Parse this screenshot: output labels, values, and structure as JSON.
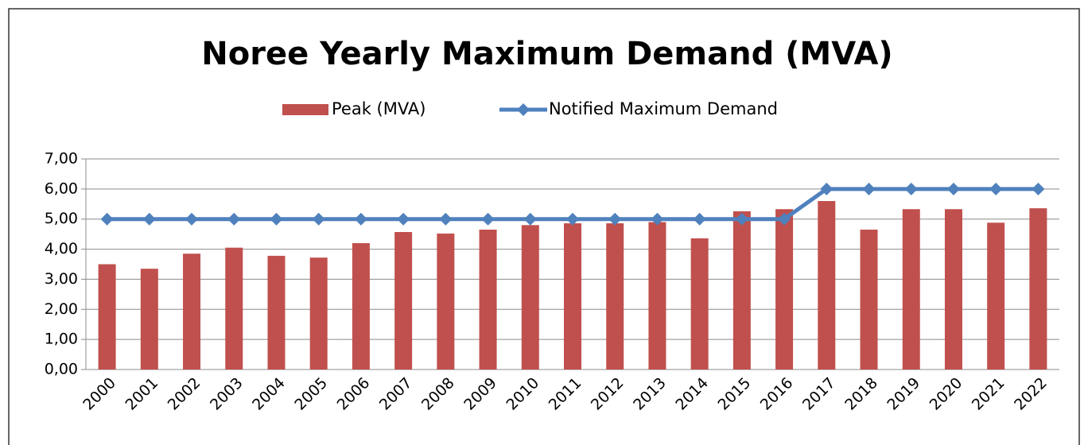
{
  "chart_data": {
    "type": "bar",
    "title": "Noree Yearly Maximum Demand (MVA)",
    "categories": [
      "2000",
      "2001",
      "2002",
      "2003",
      "2004",
      "2005",
      "2006",
      "2007",
      "2008",
      "2009",
      "2010",
      "2011",
      "2012",
      "2013",
      "2014",
      "2015",
      "2016",
      "2017",
      "2018",
      "2019",
      "2020",
      "2021",
      "2022"
    ],
    "series": [
      {
        "name": "Peak (MVA)",
        "type": "bar",
        "color": "#c0504d",
        "values": [
          3.5,
          3.35,
          3.85,
          4.05,
          3.78,
          3.72,
          4.2,
          4.57,
          4.52,
          4.65,
          4.8,
          4.86,
          4.86,
          4.9,
          4.36,
          5.26,
          5.33,
          5.6,
          4.65,
          5.33,
          5.33,
          4.88,
          5.36
        ]
      },
      {
        "name": "Notified Maximum Demand",
        "type": "line",
        "color": "#4f81bd",
        "values": [
          5,
          5,
          5,
          5,
          5,
          5,
          5,
          5,
          5,
          5,
          5,
          5,
          5,
          5,
          5,
          5,
          5,
          6,
          6,
          6,
          6,
          6,
          6
        ]
      }
    ],
    "ylim": [
      0,
      7
    ],
    "yticks": [
      {
        "value": 0,
        "label": "0,00"
      },
      {
        "value": 1,
        "label": "1,00"
      },
      {
        "value": 2,
        "label": "2,00"
      },
      {
        "value": 3,
        "label": "3,00"
      },
      {
        "value": 4,
        "label": "4,00"
      },
      {
        "value": 5,
        "label": "5,00"
      },
      {
        "value": 6,
        "label": "6,00"
      },
      {
        "value": 7,
        "label": "7,00"
      }
    ],
    "grid": true,
    "legend": "top"
  }
}
